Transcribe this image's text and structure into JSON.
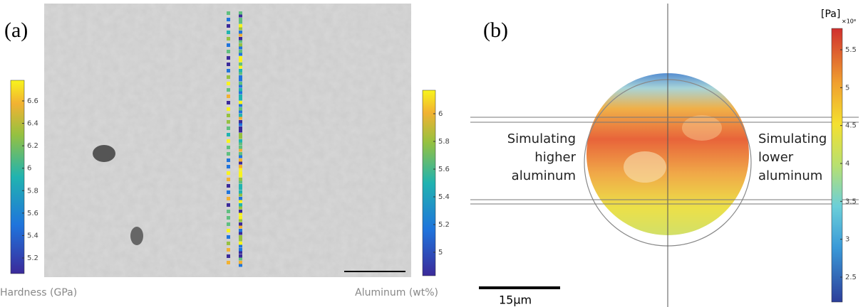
{
  "panel_a": {
    "label": "(a)",
    "left_colorbar": {
      "title": "Hardness (GPa)",
      "ticks": [
        6.6,
        6.4,
        6.2,
        6,
        5.8,
        5.6,
        5.4,
        5.2
      ]
    },
    "right_colorbar": {
      "title": "Aluminum (wt%)",
      "ticks": [
        6,
        5.8,
        5.6,
        5.4,
        5.2,
        5
      ]
    }
  },
  "panel_b": {
    "label": "(b)",
    "colorbar": {
      "unit": "[Pa]",
      "multiplier": "×10⁸",
      "ticks": [
        5.5,
        5,
        4.5,
        4,
        3.5,
        3,
        2.5
      ]
    },
    "left_annotation": [
      "Simulating",
      "higher",
      "aluminum"
    ],
    "right_annotation": [
      "Simulating",
      "lower",
      "aluminum"
    ],
    "scale_bar": "15µm"
  }
}
